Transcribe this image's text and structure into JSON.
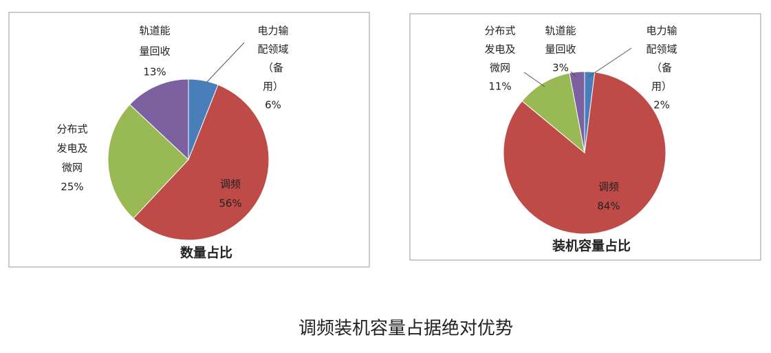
{
  "chart_data": [
    {
      "type": "pie",
      "title": "数量占比",
      "categories": [
        [
          "电力输",
          "配领域",
          "（备",
          "用）"
        ],
        [
          "调频"
        ],
        [
          "分布式",
          "发电及",
          "微网"
        ],
        [
          "轨道能",
          "量回收"
        ]
      ],
      "values": [
        6,
        56,
        25,
        13
      ],
      "value_labels": [
        "6%",
        "56%",
        "25%",
        "13%"
      ],
      "colors": [
        "#4a7ebb",
        "#be4b48",
        "#98b954",
        "#7d60a0"
      ]
    },
    {
      "type": "pie",
      "title": "装机容量占比",
      "categories": [
        [
          "电力输",
          "配领域",
          "（备",
          "用）"
        ],
        [
          "调频"
        ],
        [
          "分布式",
          "发电及",
          "微网"
        ],
        [
          "轨道能",
          "量回收"
        ]
      ],
      "values": [
        2,
        84,
        11,
        3
      ],
      "value_labels": [
        "2%",
        "84%",
        "11%",
        "3%"
      ],
      "colors": [
        "#4a7ebb",
        "#be4b48",
        "#98b954",
        "#7d60a0"
      ]
    }
  ],
  "caption": "调频装机容量占据绝对优势"
}
